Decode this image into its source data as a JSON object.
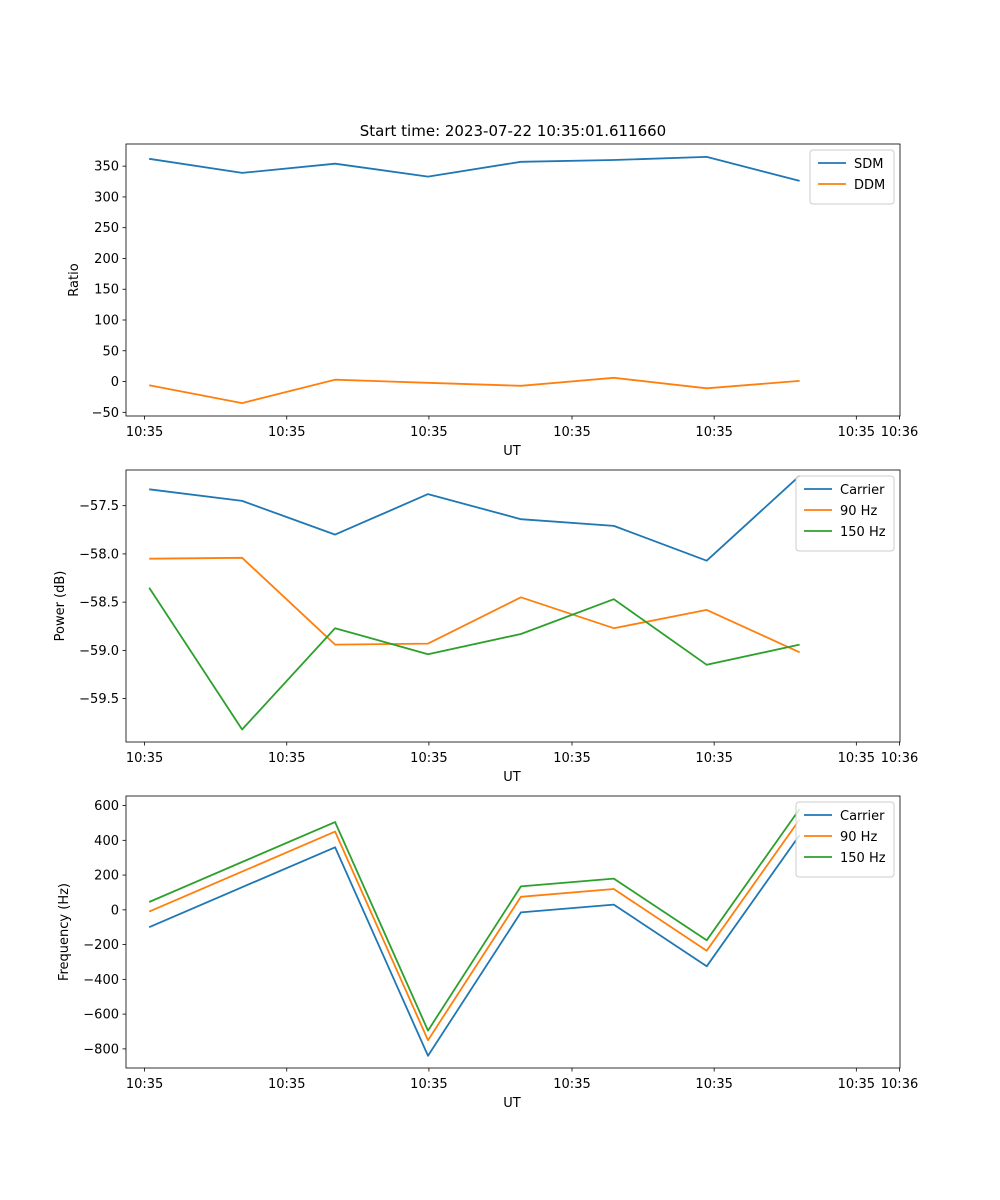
{
  "title": "Start time: 2023-07-22 10:35:01.611660",
  "colors": {
    "blue": "#1f77b4",
    "orange": "#ff7f0e",
    "green": "#2ca02c"
  },
  "chart_data": [
    {
      "type": "line",
      "ylabel": "Ratio",
      "xlabel": "UT",
      "x": [
        1,
        2,
        3,
        4,
        5,
        6,
        7,
        8
      ],
      "xlim": [
        0.75,
        9.08
      ],
      "ylim": [
        -56,
        386
      ],
      "yticks": [
        -50,
        0,
        50,
        100,
        150,
        200,
        250,
        300,
        350
      ],
      "yticklabels": [
        "−50",
        "0",
        "50",
        "100",
        "150",
        "200",
        "250",
        "300",
        "350"
      ],
      "xticks": [
        0.95,
        2.48,
        4.01,
        5.55,
        7.08,
        8.61
      ],
      "xticklabels": [
        "10:35",
        "10:35",
        "10:35",
        "10:35",
        "10:35",
        "10:35"
      ],
      "xticks_extra": [
        {
          "pos": 10.15,
          "label": "10:36"
        }
      ],
      "legend_position": "top-right",
      "series": [
        {
          "name": "SDM",
          "color": "#1f77b4",
          "values": [
            362,
            339,
            354,
            333,
            357,
            360,
            365,
            326
          ]
        },
        {
          "name": "DDM",
          "color": "#ff7f0e",
          "values": [
            -6,
            -35,
            3,
            -2,
            -7,
            6,
            -11,
            1
          ]
        }
      ]
    },
    {
      "type": "line",
      "ylabel": "Power (dB)",
      "xlabel": "UT",
      "x": [
        1,
        2,
        3,
        4,
        5,
        6,
        7,
        8
      ],
      "xlim": [
        0.75,
        9.08
      ],
      "ylim": [
        -59.95,
        -57.13
      ],
      "yticks": [
        -59.5,
        -59.0,
        -58.5,
        -58.0,
        -57.5
      ],
      "yticklabels": [
        "−59.5",
        "−59.0",
        "−58.5",
        "−58.0",
        "−57.5"
      ],
      "xticks": [
        0.95,
        2.48,
        4.01,
        5.55,
        7.08,
        8.61
      ],
      "xticklabels": [
        "10:35",
        "10:35",
        "10:35",
        "10:35",
        "10:35",
        "10:35"
      ],
      "xticks_extra": [
        {
          "pos": 10.15,
          "label": "10:36"
        }
      ],
      "legend_position": "top-right",
      "series": [
        {
          "name": "Carrier",
          "color": "#1f77b4",
          "values": [
            -57.33,
            -57.45,
            -57.8,
            -57.38,
            -57.64,
            -57.71,
            -58.07,
            -57.19
          ]
        },
        {
          "name": "90 Hz",
          "color": "#ff7f0e",
          "values": [
            -58.05,
            -58.04,
            -58.94,
            -58.93,
            -58.45,
            -58.77,
            -58.58,
            -59.02
          ]
        },
        {
          "name": "150 Hz",
          "color": "#2ca02c",
          "values": [
            -58.35,
            -59.82,
            -58.77,
            -59.04,
            -58.83,
            -58.47,
            -59.15,
            -58.94
          ]
        }
      ]
    },
    {
      "type": "line",
      "ylabel": "Frequency (Hz)",
      "xlabel": "UT",
      "x": [
        1,
        2,
        3,
        4,
        5,
        6,
        7,
        8
      ],
      "xlim": [
        0.75,
        9.08
      ],
      "ylim": [
        -910,
        655
      ],
      "yticks": [
        -800,
        -600,
        -400,
        -200,
        0,
        200,
        400,
        600
      ],
      "yticklabels": [
        "−800",
        "−600",
        "−400",
        "−200",
        "0",
        "200",
        "400",
        "600"
      ],
      "xticks": [
        0.95,
        2.48,
        4.01,
        5.55,
        7.08,
        8.61
      ],
      "xticklabels": [
        "10:35",
        "10:35",
        "10:35",
        "10:35",
        "10:35",
        "10:35"
      ],
      "xticks_extra": [
        {
          "pos": 10.15,
          "label": "10:36"
        }
      ],
      "legend_position": "top-right",
      "series": [
        {
          "name": "Carrier",
          "color": "#1f77b4",
          "values": [
            -100,
            130,
            360,
            -840,
            -15,
            30,
            -325,
            430
          ]
        },
        {
          "name": "90 Hz",
          "color": "#ff7f0e",
          "values": [
            -10,
            220,
            450,
            -750,
            75,
            120,
            -235,
            520
          ]
        },
        {
          "name": "150 Hz",
          "color": "#2ca02c",
          "values": [
            45,
            275,
            505,
            -695,
            135,
            180,
            -175,
            580
          ]
        }
      ]
    }
  ]
}
